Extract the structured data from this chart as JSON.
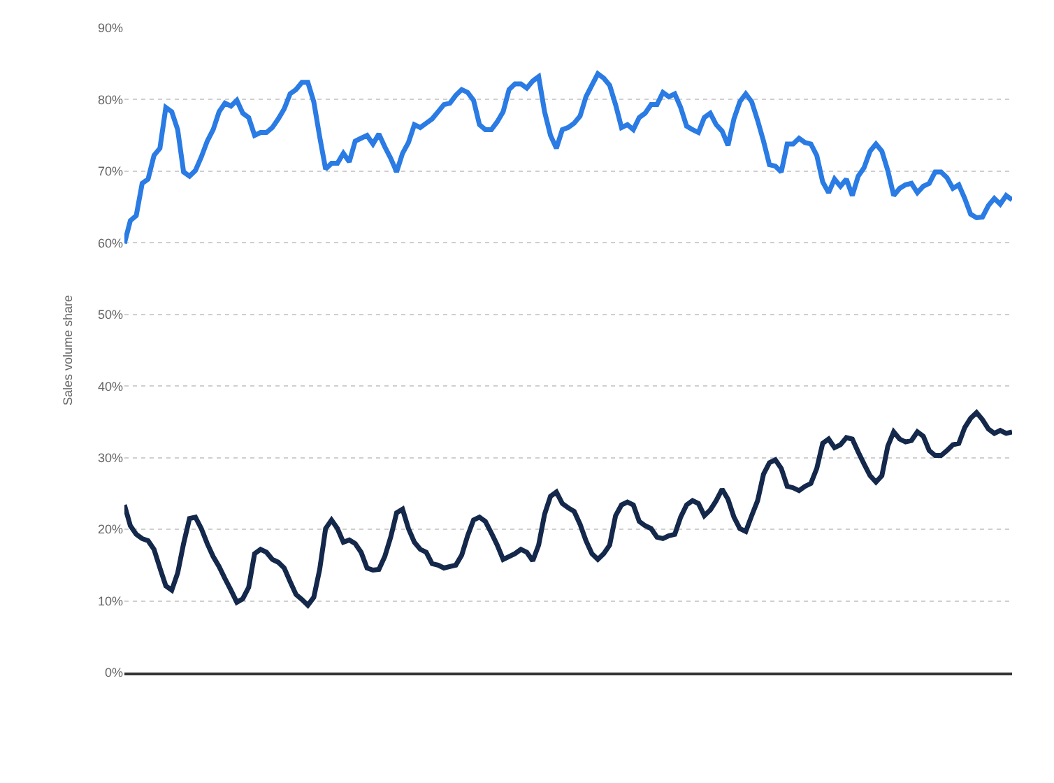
{
  "chart_data": {
    "type": "line",
    "ylabel": "Sales volume share",
    "categories": [
      null,
      null,
      null,
      null,
      null,
      null,
      null,
      null,
      null,
      null,
      null,
      null,
      null,
      null,
      null,
      null,
      null,
      null,
      null,
      null,
      null,
      null,
      null,
      null,
      null,
      null,
      null,
      null,
      null,
      null,
      null,
      null,
      null,
      null,
      null,
      null,
      null,
      null,
      null,
      null,
      null,
      null,
      null,
      null,
      null,
      null,
      null,
      null,
      null,
      null,
      null,
      null,
      null,
      null,
      null,
      null,
      null,
      null,
      null,
      null,
      null,
      null,
      null,
      null,
      null,
      null,
      null,
      null,
      null,
      null,
      null,
      null,
      null,
      null,
      null,
      null,
      null,
      null,
      null,
      null,
      null,
      null,
      null,
      null,
      null,
      null,
      null,
      null,
      null,
      null,
      null,
      null,
      null,
      null,
      null,
      null,
      null,
      null,
      null,
      null,
      null,
      null,
      null,
      null,
      null,
      null,
      null,
      null,
      null,
      null,
      null,
      null,
      null,
      null,
      null,
      null,
      null,
      null,
      null,
      null,
      null,
      null,
      null,
      null,
      null,
      null,
      null,
      null,
      null,
      null,
      null,
      null,
      null,
      null,
      null,
      null,
      null,
      null,
      null,
      null,
      null,
      null,
      null,
      null,
      null,
      null,
      null,
      null,
      null,
      null,
      null
    ],
    "series": [
      {
        "color": "#2a7be4",
        "values": [
          59.9,
          63.1,
          63.8,
          68.3,
          68.9,
          72.2,
          73.2,
          78.9,
          78.3,
          75.8,
          69.9,
          69.3,
          70.1,
          72.0,
          74.2,
          75.8,
          78.3,
          79.5,
          79.1,
          79.9,
          78.1,
          77.5,
          75.0,
          75.4,
          75.4,
          76.1,
          77.3,
          78.7,
          80.8,
          81.4,
          82.4,
          82.4,
          79.7,
          74.8,
          70.3,
          71.1,
          71.1,
          72.5,
          71.3,
          74.2,
          74.6,
          75.0,
          73.8,
          75.2,
          73.4,
          71.8,
          69.9,
          72.5,
          74.0,
          76.5,
          76.1,
          76.7,
          77.3,
          78.3,
          79.3,
          79.5,
          80.6,
          81.4,
          81.0,
          79.9,
          76.5,
          75.8,
          75.8,
          76.9,
          78.3,
          81.4,
          82.2,
          82.2,
          81.6,
          82.6,
          83.2,
          78.3,
          75.0,
          73.2,
          75.8,
          76.1,
          76.7,
          77.7,
          80.4,
          82.0,
          83.6,
          83.0,
          82.0,
          79.3,
          76.1,
          76.5,
          75.8,
          77.5,
          78.1,
          79.3,
          79.3,
          81.0,
          80.4,
          80.8,
          78.9,
          76.3,
          75.8,
          75.4,
          77.5,
          78.1,
          76.5,
          75.6,
          73.6,
          77.3,
          79.7,
          80.8,
          79.7,
          77.1,
          74.2,
          70.9,
          70.7,
          69.9,
          73.8,
          73.8,
          74.6,
          74.0,
          73.8,
          72.2,
          68.5,
          67.0,
          68.9,
          67.9,
          68.9,
          66.6,
          69.3,
          70.5,
          72.8,
          73.8,
          72.8,
          70.1,
          66.6,
          67.6,
          68.1,
          68.3,
          67.0,
          67.9,
          68.3,
          69.9,
          69.9,
          69.1,
          67.6,
          68.1,
          66.2,
          64.0,
          63.5,
          63.6,
          65.2,
          66.2,
          65.4,
          66.6,
          66.0
        ]
      },
      {
        "color": "#14284b",
        "values": [
          23.4,
          20.5,
          19.3,
          18.7,
          18.4,
          17.2,
          14.6,
          12.1,
          11.5,
          13.9,
          18.0,
          21.5,
          21.7,
          20.1,
          18.0,
          16.2,
          14.8,
          13.1,
          11.5,
          9.8,
          10.3,
          11.9,
          16.6,
          17.2,
          16.8,
          15.8,
          15.4,
          14.6,
          12.7,
          10.9,
          10.2,
          9.4,
          10.5,
          14.4,
          20.1,
          21.3,
          20.1,
          18.2,
          18.5,
          18.0,
          16.8,
          14.6,
          14.3,
          14.4,
          16.2,
          18.9,
          22.3,
          22.8,
          20.1,
          18.2,
          17.2,
          16.8,
          15.2,
          15.0,
          14.6,
          14.8,
          15.0,
          16.4,
          19.1,
          21.3,
          21.7,
          21.1,
          19.5,
          17.8,
          15.8,
          16.2,
          16.6,
          17.2,
          16.8,
          15.6,
          17.8,
          22.1,
          24.6,
          25.2,
          23.6,
          23.0,
          22.5,
          20.7,
          18.4,
          16.6,
          15.8,
          16.6,
          17.8,
          21.9,
          23.4,
          23.8,
          23.4,
          21.1,
          20.5,
          20.1,
          18.9,
          18.7,
          19.1,
          19.3,
          21.7,
          23.4,
          24.0,
          23.6,
          21.9,
          22.7,
          24.0,
          25.6,
          24.2,
          21.7,
          20.1,
          19.7,
          21.9,
          24.0,
          27.7,
          29.3,
          29.7,
          28.5,
          26.0,
          25.8,
          25.4,
          26.0,
          26.4,
          28.5,
          32.0,
          32.6,
          31.4,
          31.8,
          32.8,
          32.6,
          30.8,
          29.1,
          27.5,
          26.6,
          27.5,
          31.6,
          33.6,
          32.6,
          32.2,
          32.4,
          33.6,
          33.0,
          31.0,
          30.3,
          30.3,
          31.0,
          31.8,
          32.0,
          34.2,
          35.5,
          36.3,
          35.3,
          34.0,
          33.4,
          33.8,
          33.4,
          33.6
        ]
      }
    ],
    "ylim": [
      0,
      90
    ],
    "yticks": [
      {
        "value": 0,
        "label": "0%"
      },
      {
        "value": 10,
        "label": "10%"
      },
      {
        "value": 20,
        "label": "20%"
      },
      {
        "value": 30,
        "label": "30%"
      },
      {
        "value": 40,
        "label": "40%"
      },
      {
        "value": 50,
        "label": "50%"
      },
      {
        "value": 60,
        "label": "60%"
      },
      {
        "value": 70,
        "label": "70%"
      },
      {
        "value": 80,
        "label": "80%"
      },
      {
        "value": 90,
        "label": "90%"
      }
    ],
    "grid": "y",
    "tick_labels": "y",
    "marker": "none",
    "line_style": "solid"
  }
}
